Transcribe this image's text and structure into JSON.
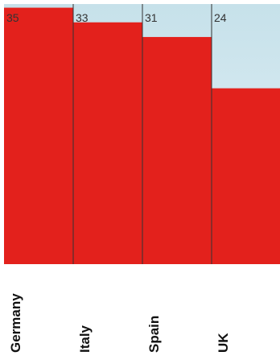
{
  "chart_data": {
    "type": "bar",
    "title": "",
    "xlabel": "",
    "ylabel": "",
    "categories": [
      "Germany",
      "Italy",
      "Spain",
      "UK"
    ],
    "values": [
      35,
      33,
      31,
      24
    ],
    "value_labels": [
      "35",
      "33",
      "31",
      "24"
    ],
    "ylim": [
      0,
      35.5
    ],
    "grid": false,
    "legend": "none",
    "colors": {
      "bar": "#e3211c",
      "background_top": "#c6e1ea",
      "background_bottom": "#e6f2f7",
      "divider": "#333333"
    }
  }
}
